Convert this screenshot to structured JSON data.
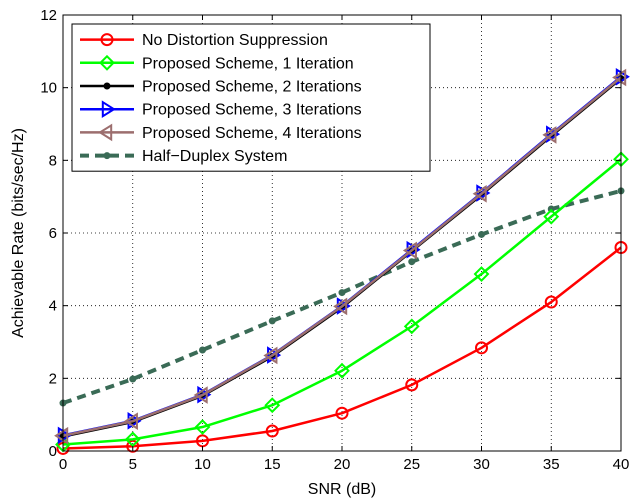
{
  "chart_data": {
    "type": "line",
    "xlabel": "SNR (dB)",
    "ylabel": "Achievable Rate (bits/sec/Hz)",
    "xlim": [
      0,
      40
    ],
    "ylim": [
      0,
      12
    ],
    "xticks": [
      0,
      5,
      10,
      15,
      20,
      25,
      30,
      35,
      40
    ],
    "yticks": [
      0,
      2,
      4,
      6,
      8,
      10,
      12
    ],
    "grid": true,
    "legend_position": "top-left",
    "x": [
      0,
      5,
      10,
      15,
      20,
      25,
      30,
      35,
      40
    ],
    "series": [
      {
        "name": "No Distortion Suppression",
        "color": "#ff0000",
        "marker": "circle",
        "line": "solid",
        "values": [
          0.07,
          0.13,
          0.28,
          0.55,
          1.04,
          1.82,
          2.84,
          4.1,
          5.6
        ]
      },
      {
        "name": "Proposed Scheme, 1  Iteration",
        "color": "#00ff00",
        "marker": "diamond",
        "line": "solid",
        "values": [
          0.18,
          0.32,
          0.66,
          1.26,
          2.21,
          3.43,
          4.87,
          6.45,
          8.03
        ]
      },
      {
        "name": "Proposed Scheme, 2  Iterations",
        "color": "#000000",
        "marker": "dot",
        "line": "solid",
        "values": [
          0.4,
          0.8,
          1.52,
          2.6,
          3.95,
          5.5,
          7.05,
          8.67,
          10.25
        ]
      },
      {
        "name": "Proposed Scheme, 3  Iterations",
        "color": "#0000ff",
        "marker": "triangle-right",
        "line": "solid",
        "values": [
          0.43,
          0.83,
          1.55,
          2.64,
          3.99,
          5.54,
          7.1,
          8.72,
          10.3
        ]
      },
      {
        "name": "Proposed Scheme, 4  Iterations",
        "color": "#9c6e6e",
        "marker": "triangle-left",
        "line": "solid",
        "values": [
          0.42,
          0.82,
          1.54,
          2.63,
          3.98,
          5.52,
          7.08,
          8.7,
          10.28
        ]
      },
      {
        "name": "Half−Duplex System",
        "color": "#3a6b56",
        "marker": "dot",
        "line": "dashed",
        "values": [
          1.32,
          1.98,
          2.78,
          3.58,
          4.36,
          5.21,
          5.96,
          6.66,
          7.16
        ]
      }
    ]
  }
}
